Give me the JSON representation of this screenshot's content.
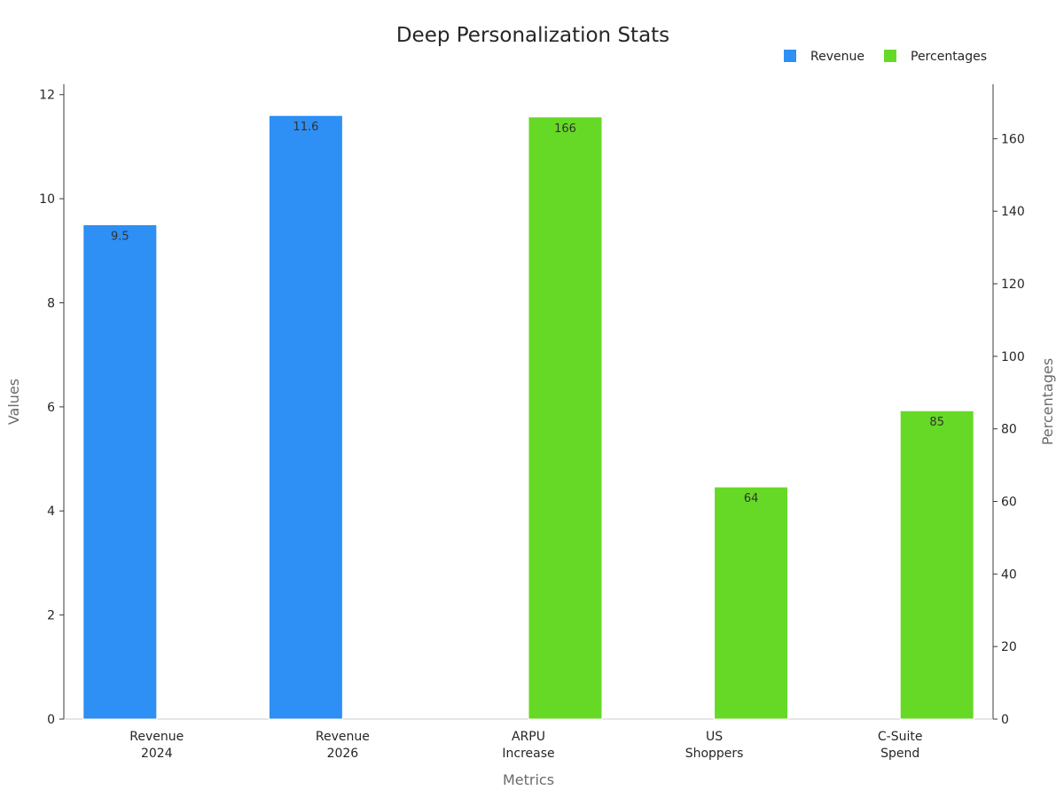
{
  "chart_data": {
    "type": "bar",
    "title": "Deep Personalization Stats",
    "xlabel": "Metrics",
    "ylabel": "Values",
    "y2label": "Percentages",
    "categories": [
      [
        "Revenue",
        "2024"
      ],
      [
        "Revenue",
        "2026"
      ],
      [
        "ARPU",
        "Increase"
      ],
      [
        "US",
        "Shoppers"
      ],
      [
        "C-Suite",
        "Spend"
      ]
    ],
    "series": [
      {
        "name": "Revenue",
        "axis": "left",
        "color": "#2e8ff5",
        "values": [
          9.5,
          11.6,
          null,
          null,
          null
        ],
        "labels": [
          "9.5",
          "11.6",
          null,
          null,
          null
        ]
      },
      {
        "name": "Percentages",
        "axis": "right",
        "color": "#66d926",
        "values": [
          null,
          null,
          166,
          64,
          85
        ],
        "labels": [
          null,
          null,
          "166",
          "64",
          "85"
        ]
      }
    ],
    "ylim": [
      0,
      12.2
    ],
    "y2lim": [
      0,
      175
    ],
    "yticks": [
      0,
      2,
      4,
      6,
      8,
      10,
      12
    ],
    "y2ticks": [
      0,
      20,
      40,
      60,
      80,
      100,
      120,
      140,
      160
    ],
    "legend_position": "top-right",
    "grid": false
  }
}
